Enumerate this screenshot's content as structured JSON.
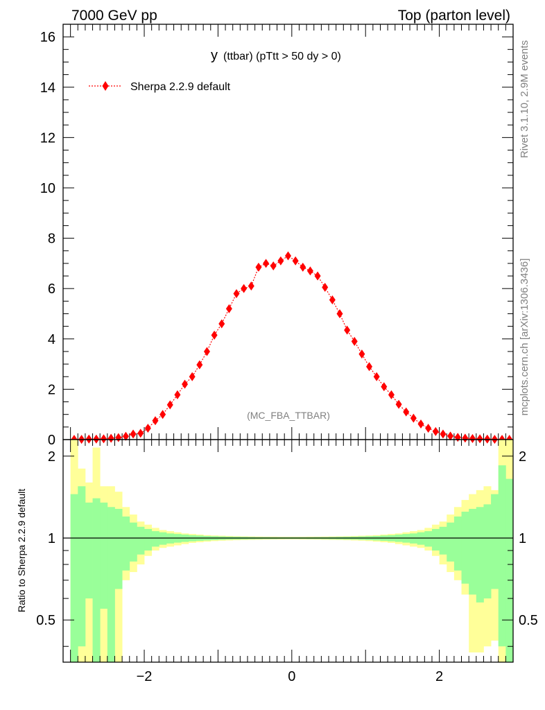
{
  "header": {
    "left": "7000 GeV pp",
    "right": "Top (parton level)"
  },
  "side_labels": {
    "rivet": "Rivet 3.1.10,  2.9M events",
    "mcplots": "mcplots.cern.ch [arXiv:1306.3436]"
  },
  "chart_data": [
    {
      "type": "line",
      "title_main": "y",
      "title_rest": "(ttbar) (pTtt > 50 dy > 0)",
      "watermark": "(MC_FBA_TTBAR)",
      "xlim": [
        -3.1,
        3.0
      ],
      "ylim": [
        0,
        16.5
      ],
      "yticks": [
        0,
        2,
        4,
        6,
        8,
        10,
        12,
        14,
        16
      ],
      "ytick_labels": [
        "0",
        "2",
        "4",
        "6",
        "8",
        "10",
        "12",
        "14",
        "16"
      ],
      "legend": "top-left",
      "series": [
        {
          "name": "Sherpa 2.2.9 default",
          "color": "#ff0000",
          "marker": "diamond",
          "x": [
            -2.95,
            -2.85,
            -2.75,
            -2.65,
            -2.55,
            -2.45,
            -2.35,
            -2.25,
            -2.15,
            -2.05,
            -1.95,
            -1.85,
            -1.75,
            -1.65,
            -1.55,
            -1.45,
            -1.35,
            -1.25,
            -1.15,
            -1.05,
            -0.95,
            -0.85,
            -0.75,
            -0.65,
            -0.55,
            -0.45,
            -0.35,
            -0.25,
            -0.15,
            -0.05,
            0.05,
            0.15,
            0.25,
            0.35,
            0.45,
            0.55,
            0.65,
            0.75,
            0.85,
            0.95,
            1.05,
            1.15,
            1.25,
            1.35,
            1.45,
            1.55,
            1.65,
            1.75,
            1.85,
            1.95,
            2.05,
            2.15,
            2.25,
            2.35,
            2.45,
            2.55,
            2.65,
            2.75,
            2.85,
            2.95
          ],
          "y": [
            0.01,
            0.01,
            0.02,
            0.02,
            0.03,
            0.05,
            0.08,
            0.13,
            0.22,
            0.25,
            0.45,
            0.75,
            1.0,
            1.38,
            1.78,
            2.2,
            2.5,
            2.97,
            3.5,
            4.15,
            4.6,
            5.2,
            5.8,
            6.0,
            6.1,
            6.85,
            7.0,
            6.9,
            7.1,
            7.3,
            7.1,
            6.85,
            6.7,
            6.5,
            6.05,
            5.55,
            5.0,
            4.35,
            3.9,
            3.4,
            2.9,
            2.5,
            2.1,
            1.78,
            1.4,
            1.1,
            0.85,
            0.62,
            0.45,
            0.32,
            0.22,
            0.14,
            0.09,
            0.06,
            0.04,
            0.03,
            0.02,
            0.01,
            0.01,
            0.01
          ]
        }
      ]
    },
    {
      "type": "area",
      "ylabel": "Ratio to Sherpa 2.2.9 default",
      "xlim": [
        -3.1,
        3.0
      ],
      "ylim": [
        0.35,
        2.3
      ],
      "log_scale_y": true,
      "yticks": [
        0.5,
        1,
        2
      ],
      "ytick_labels": [
        "0.5",
        "1",
        "2"
      ],
      "xticks": [
        -2,
        0,
        2
      ],
      "xtick_labels": [
        "−2",
        "0",
        "2"
      ],
      "reference_line": 1,
      "bin_edges": [
        -3.0,
        -2.9,
        -2.8,
        -2.7,
        -2.6,
        -2.5,
        -2.4,
        -2.3,
        -2.2,
        -2.1,
        -2.0,
        -1.9,
        -1.8,
        -1.7,
        -1.6,
        -1.5,
        -1.4,
        -1.3,
        -1.2,
        -1.1,
        -1.0,
        -0.9,
        -0.8,
        -0.7,
        -0.6,
        -0.5,
        -0.4,
        -0.3,
        -0.2,
        -0.1,
        0.0,
        0.1,
        0.2,
        0.3,
        0.4,
        0.5,
        0.6,
        0.7,
        0.8,
        0.9,
        1.0,
        1.1,
        1.2,
        1.3,
        1.4,
        1.5,
        1.6,
        1.7,
        1.8,
        1.9,
        2.0,
        2.1,
        2.2,
        2.3,
        2.4,
        2.5,
        2.6,
        2.7,
        2.8,
        2.9,
        3.0
      ],
      "bands": [
        {
          "name": "yellow",
          "color": "#ffff99",
          "upper": [
            2.3,
            1.8,
            1.6,
            2.15,
            1.55,
            1.55,
            1.48,
            1.3,
            1.22,
            1.15,
            1.12,
            1.09,
            1.07,
            1.06,
            1.05,
            1.04,
            1.035,
            1.03,
            1.025,
            1.022,
            1.02,
            1.018,
            1.016,
            1.015,
            1.014,
            1.013,
            1.012,
            1.012,
            1.011,
            1.011,
            1.011,
            1.011,
            1.012,
            1.012,
            1.013,
            1.014,
            1.015,
            1.016,
            1.018,
            1.02,
            1.022,
            1.025,
            1.03,
            1.035,
            1.04,
            1.05,
            1.06,
            1.07,
            1.09,
            1.12,
            1.15,
            1.22,
            1.3,
            1.38,
            1.45,
            1.5,
            1.55,
            1.5,
            2.3,
            2.3
          ],
          "lower": [
            0.35,
            0.35,
            0.35,
            0.35,
            0.35,
            0.35,
            0.35,
            0.7,
            0.75,
            0.8,
            0.86,
            0.9,
            0.92,
            0.93,
            0.94,
            0.95,
            0.96,
            0.965,
            0.97,
            0.975,
            0.978,
            0.98,
            0.982,
            0.984,
            0.985,
            0.986,
            0.987,
            0.988,
            0.988,
            0.989,
            0.989,
            0.988,
            0.988,
            0.987,
            0.986,
            0.985,
            0.984,
            0.982,
            0.98,
            0.978,
            0.975,
            0.97,
            0.965,
            0.96,
            0.95,
            0.94,
            0.93,
            0.92,
            0.9,
            0.86,
            0.8,
            0.75,
            0.7,
            0.62,
            0.38,
            0.38,
            0.4,
            0.42,
            0.35,
            0.35
          ]
        },
        {
          "name": "green",
          "color": "#99ff99",
          "upper": [
            1.45,
            1.55,
            1.35,
            1.4,
            1.35,
            1.3,
            1.28,
            1.2,
            1.14,
            1.1,
            1.08,
            1.06,
            1.05,
            1.04,
            1.035,
            1.03,
            1.025,
            1.022,
            1.018,
            1.016,
            1.014,
            1.012,
            1.011,
            1.01,
            1.009,
            1.008,
            1.008,
            1.007,
            1.007,
            1.007,
            1.007,
            1.007,
            1.007,
            1.008,
            1.008,
            1.009,
            1.01,
            1.011,
            1.012,
            1.014,
            1.016,
            1.018,
            1.022,
            1.025,
            1.03,
            1.035,
            1.04,
            1.05,
            1.06,
            1.08,
            1.1,
            1.14,
            1.2,
            1.25,
            1.28,
            1.3,
            1.33,
            1.45,
            1.85,
            1.65
          ],
          "lower": [
            0.35,
            0.4,
            0.6,
            0.35,
            0.55,
            0.35,
            0.65,
            0.76,
            0.82,
            0.87,
            0.9,
            0.93,
            0.945,
            0.955,
            0.962,
            0.968,
            0.973,
            0.977,
            0.98,
            0.983,
            0.985,
            0.987,
            0.988,
            0.989,
            0.99,
            0.991,
            0.992,
            0.992,
            0.993,
            0.993,
            0.993,
            0.993,
            0.992,
            0.992,
            0.991,
            0.99,
            0.989,
            0.988,
            0.987,
            0.985,
            0.983,
            0.98,
            0.977,
            0.973,
            0.968,
            0.962,
            0.955,
            0.945,
            0.93,
            0.9,
            0.87,
            0.82,
            0.76,
            0.68,
            0.62,
            0.58,
            0.6,
            0.65,
            0.4,
            0.35
          ]
        }
      ]
    }
  ]
}
